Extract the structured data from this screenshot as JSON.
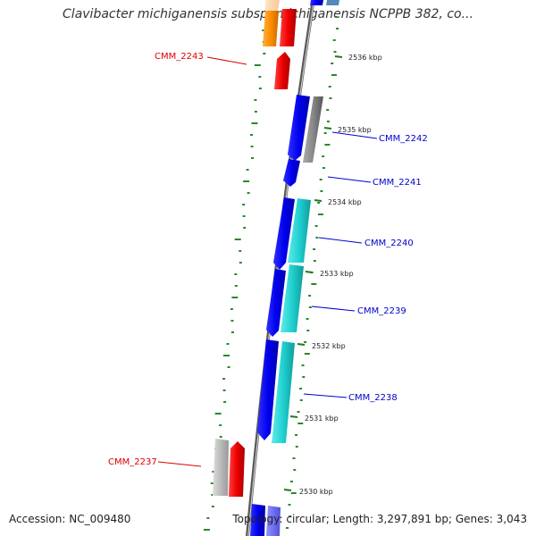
{
  "title": "Clavibacter michiganensis subsp. michiganensis NCPPB 382, co...",
  "footer": {
    "accession": "Accession: NC_009480",
    "summary": "Topology: circular; Length: 3,297,891 bp; Genes: 3,043"
  },
  "colors": {
    "forward_cds": "#0000ee",
    "reverse_cds": "#20d0d0",
    "red_gene": "#ee0000",
    "orange_gene": "#ff8c00",
    "gray_gene": "#888888",
    "light_gray_gene": "#bbbbbb",
    "backbone": "#777777",
    "gc_skew_ticks": "#2a8a2a",
    "forward_label": "#0000cc",
    "reverse_label": "#dd0000"
  },
  "ruler": [
    "2536 kbp",
    "2535 kbp",
    "2534 kbp",
    "2533 kbp",
    "2532 kbp",
    "2531 kbp",
    "2530 kbp"
  ],
  "gene_labels": [
    {
      "name": "CMM_2243",
      "strand": "left"
    },
    {
      "name": "CMM_2242",
      "strand": "right"
    },
    {
      "name": "CMM_2241",
      "strand": "right"
    },
    {
      "name": "CMM_2240",
      "strand": "right"
    },
    {
      "name": "CMM_2239",
      "strand": "right"
    },
    {
      "name": "CMM_2238",
      "strand": "right"
    },
    {
      "name": "CMM_2237",
      "strand": "left"
    }
  ]
}
